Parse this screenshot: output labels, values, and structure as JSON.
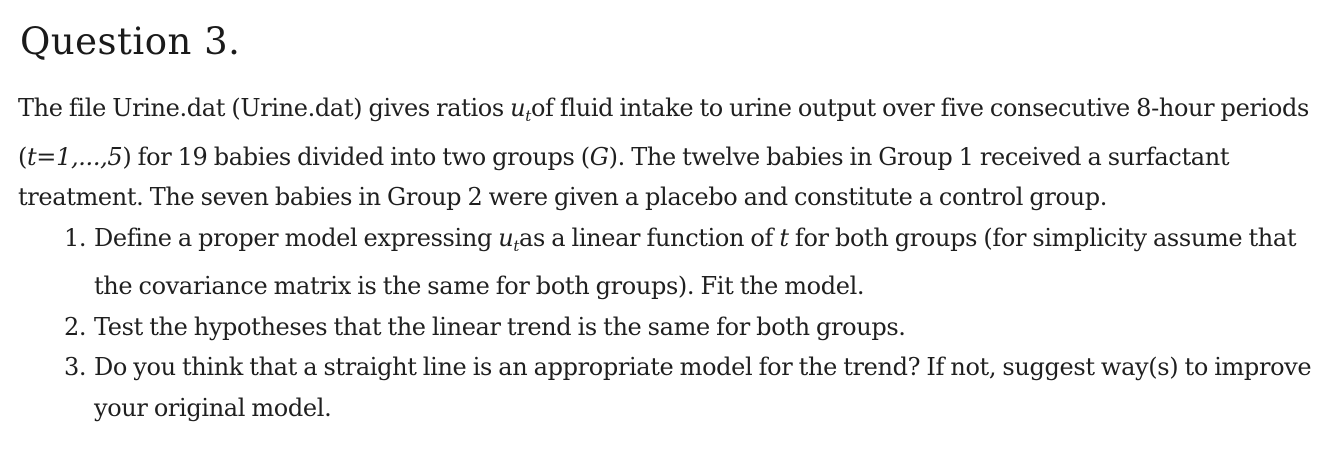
{
  "question": {
    "title": "Question 3."
  },
  "intro": {
    "s1": "The file Urine.dat (Urine.dat) gives ratios ",
    "u_var": "u",
    "t_sub": "t",
    "s2": "of fluid intake to urine output over five consecutive 8-hour periods (",
    "t_range": "t=1,...,5",
    "s3": ") for 19 babies divided into two groups (",
    "g_var": "G",
    "s4": "). The twelve babies in Group 1 received a surfactant treatment. The seven babies in Group 2 were given a placebo and constitute a control group."
  },
  "items": [
    {
      "num": "1.",
      "a": "Define a proper model expressing ",
      "u_var": "u",
      "t_sub": "t",
      "b": "as a linear function of ",
      "t_var": "t",
      "c": "for both groups (for simplicity assume that the covariance matrix is the same for both groups). Fit the model."
    },
    {
      "num": "2.",
      "text": "Test the hypotheses that the linear trend is the same for both groups."
    },
    {
      "num": "3.",
      "text": "Do you think that a straight line is an appropriate model for the trend? If not, suggest way(s) to improve your original model."
    }
  ]
}
